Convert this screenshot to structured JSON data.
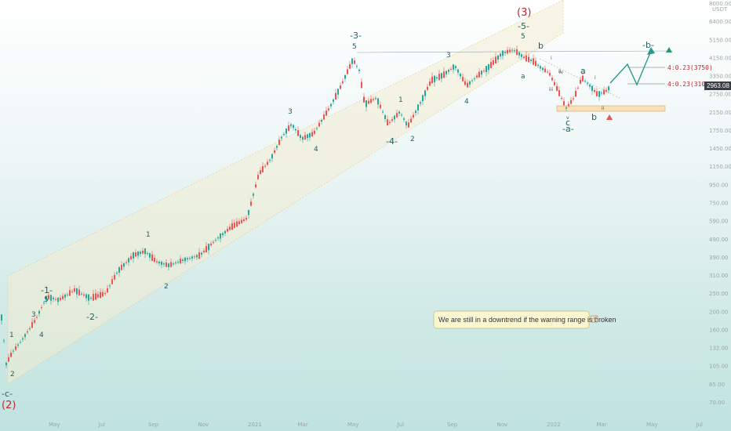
{
  "chart_data": {
    "type": "candlestick",
    "y_scale": "log",
    "y_unit": "USDT",
    "y_ticks": [
      "8000.00",
      "6400.00",
      "5150.00",
      "4150.00",
      "3350.00",
      "2750.00",
      "2150.00",
      "1750.00",
      "1450.00",
      "1150.00",
      "950.00",
      "750.00",
      "590.00",
      "490.00",
      "390.00",
      "310.00",
      "250.00",
      "200.00",
      "160.00",
      "132.00",
      "105.00",
      "85.00",
      "70.00"
    ],
    "x_ticks": [
      "May",
      "Jul",
      "Sep",
      "Nov",
      "2021",
      "Mar",
      "May",
      "Jul",
      "Sep",
      "Nov",
      "2022",
      "Mar",
      "May",
      "Jul"
    ],
    "current_price": "2963.08",
    "levels": [
      {
        "label": "4:0.23(3750)",
        "value": 3750
      },
      {
        "label": "4:0.23(3100)",
        "value": 3100
      }
    ],
    "wave_labels": {
      "main": [
        "-c-",
        "(2)",
        "-1-",
        "-2-",
        "-3-",
        "-4-",
        "-5-",
        "(3)",
        "-a-",
        "-b-"
      ],
      "minor": [
        "1",
        "2",
        "3",
        "4",
        "5",
        "1",
        "2",
        "3",
        "4",
        "5",
        "1",
        "2",
        "3",
        "4",
        "5",
        "1",
        "2",
        "3",
        "4",
        "5",
        "a",
        "b",
        "i",
        "ii",
        "iii",
        "iv",
        "v",
        "c",
        "a",
        "b",
        "i",
        "ii"
      ]
    },
    "annotation": "We are still in a downtrend if the warning range is broken"
  }
}
